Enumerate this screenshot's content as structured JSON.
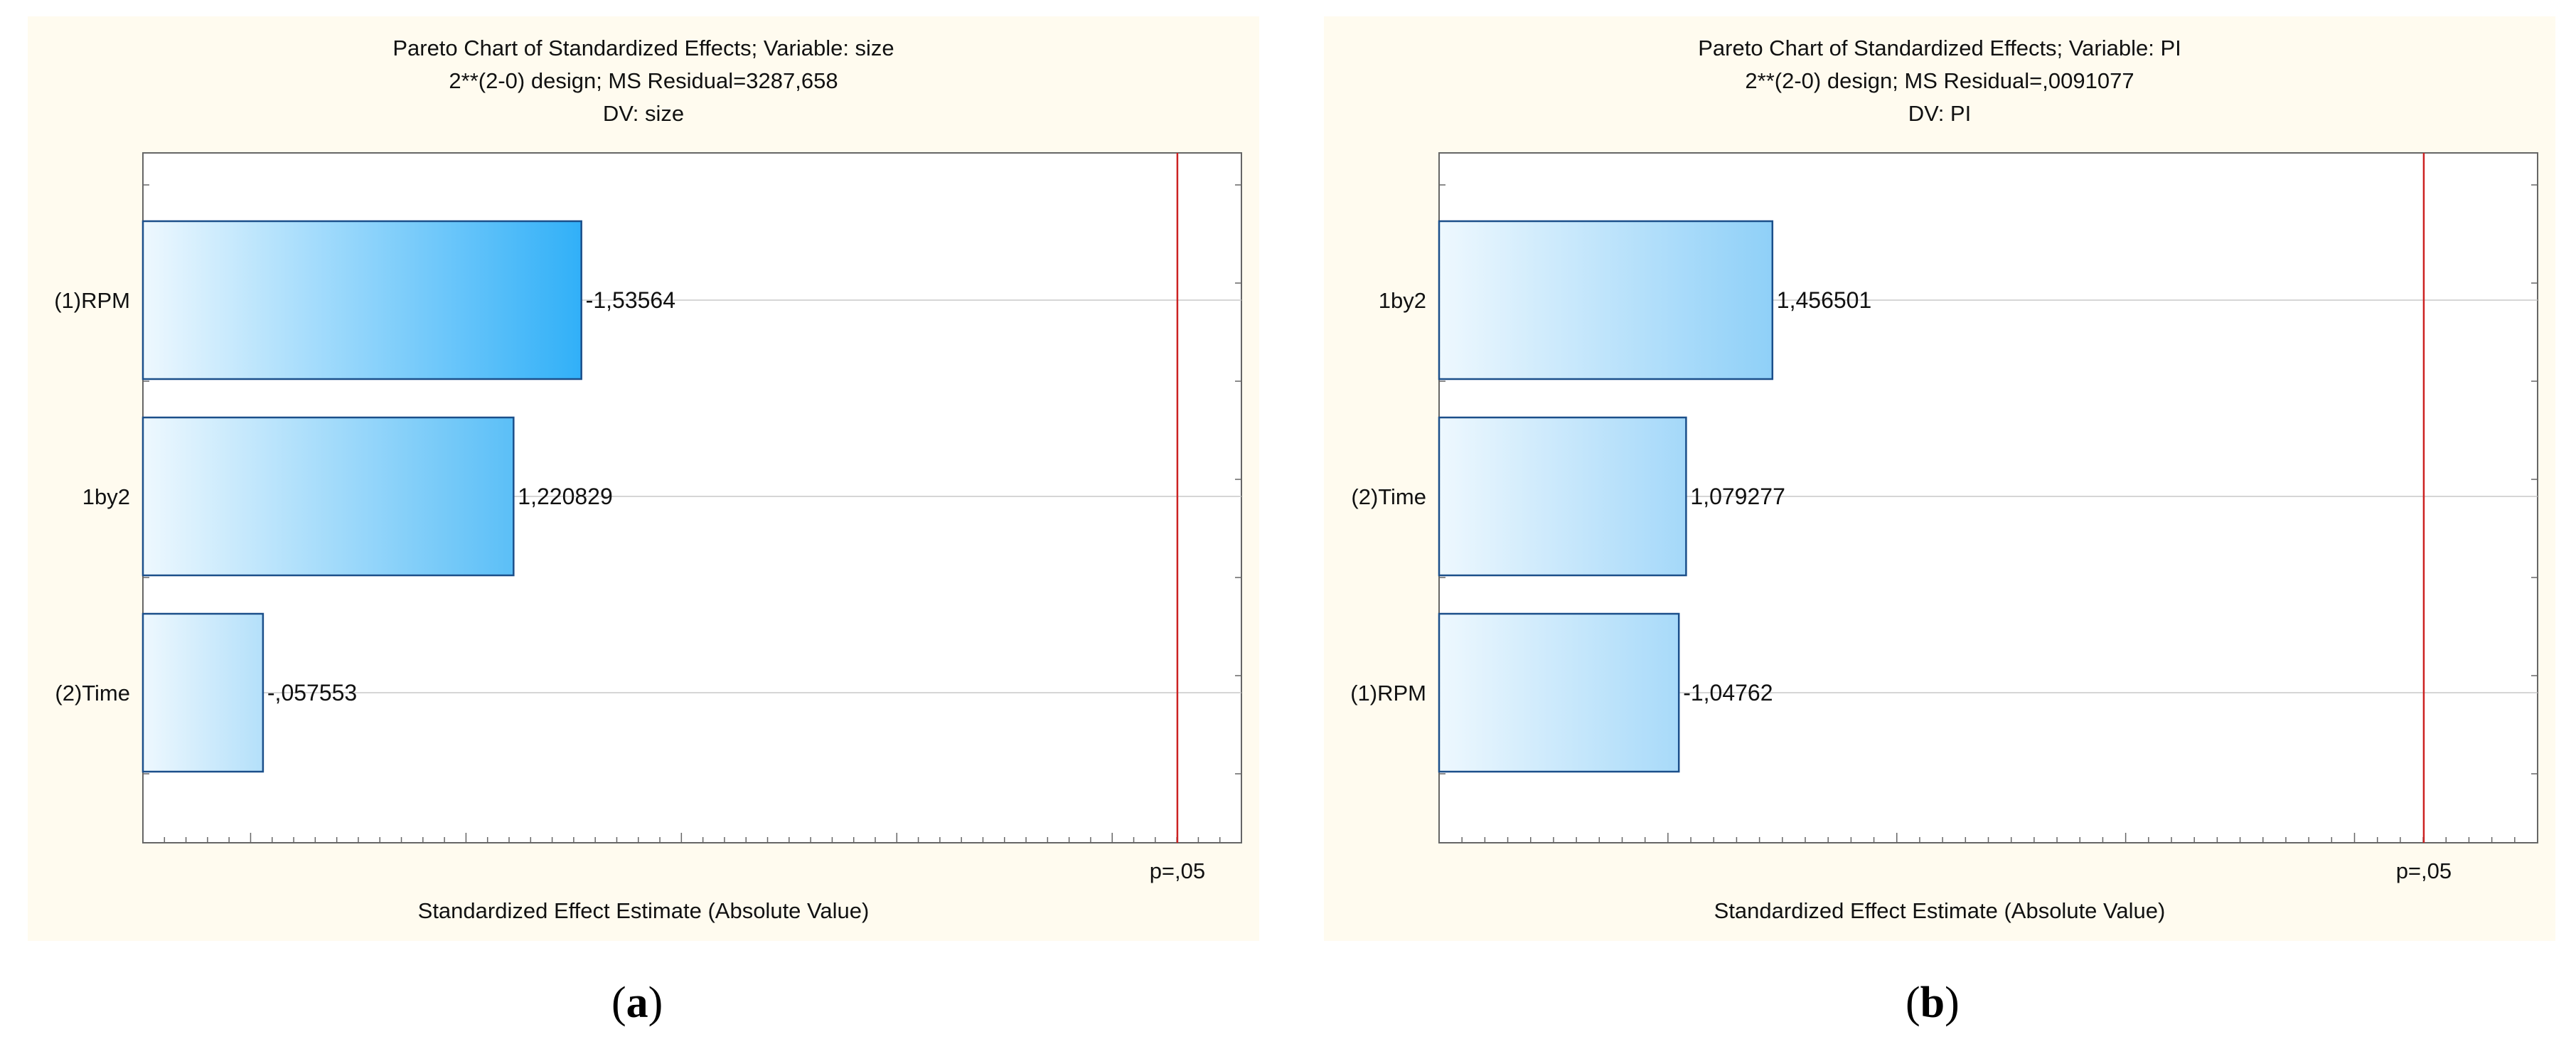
{
  "chart_data": [
    {
      "type": "bar",
      "orientation": "horizontal",
      "title": "Pareto Chart of Standardized Effects; Variable: size",
      "subtitle_lines": [
        "2**(2-0) design; MS Residual=3287,658",
        "DV: size"
      ],
      "xlabel": "Standardized Effect Estimate (Absolute Value)",
      "categories": [
        "(1)RPM",
        "1by2",
        "(2)Time"
      ],
      "values": [
        1.53564,
        1.220829,
        0.057553
      ],
      "data_labels": [
        "-1,53564",
        "1,220829",
        "-,057553"
      ],
      "reference_line": {
        "value": 4.302653,
        "label": "p=,05",
        "color": "#cc2222"
      },
      "xlim": [
        -0.5,
        4.6
      ],
      "bar_colors": [
        "#31b0f8",
        "#5bbff7",
        "#b4e0fa"
      ],
      "grid": "horizontal"
    },
    {
      "type": "bar",
      "orientation": "horizontal",
      "title": "Pareto Chart of Standardized Effects; Variable: PI",
      "subtitle_lines": [
        "2**(2-0) design; MS Residual=,0091077",
        "DV: PI"
      ],
      "xlabel": "Standardized Effect Estimate (Absolute Value)",
      "categories": [
        "1by2",
        "(2)Time",
        "(1)RPM"
      ],
      "values": [
        1.456501,
        1.079277,
        1.04762
      ],
      "data_labels": [
        "1,456501",
        "1,079277",
        "-1,04762"
      ],
      "reference_line": {
        "value": 4.302653,
        "label": "p=,05",
        "color": "#cc2222"
      },
      "xlim": [
        0,
        4.8
      ],
      "bar_colors": [
        "#8fd0f8",
        "#a4d8f9",
        "#a8daf9"
      ],
      "grid": "horizontal"
    }
  ],
  "captions": [
    {
      "open": "(",
      "letter": "a",
      "close": ")"
    },
    {
      "open": "(",
      "letter": "b",
      "close": ")"
    }
  ]
}
